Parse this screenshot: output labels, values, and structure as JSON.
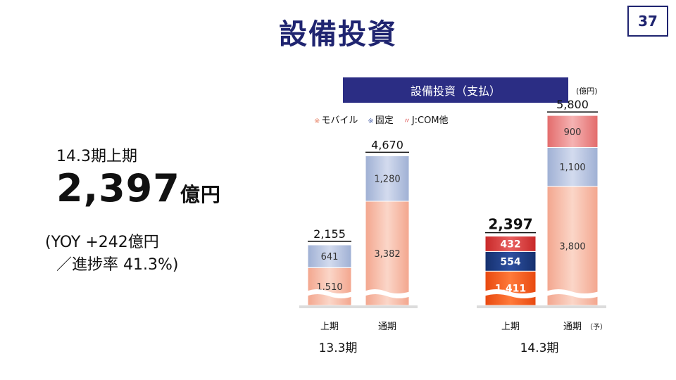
{
  "page": {
    "title": "設備投資",
    "page_number": "37"
  },
  "summary": {
    "period": "14.3期上期",
    "value": "2,397",
    "unit": "億円",
    "yoy_line": "(YOY +242億円",
    "progress_line": "／進捗率 41.3%)"
  },
  "chart_header": "設備投資（支払）",
  "unit_label": "(億円)",
  "legend": [
    {
      "label": "モバイル",
      "marker": "※",
      "color": "#f0a890"
    },
    {
      "label": "固定",
      "marker": "※",
      "color": "#8a9cc4"
    },
    {
      "label": "J:COM他",
      "marker": "〃",
      "color": "#d83a3a"
    }
  ],
  "chart_data": {
    "type": "bar",
    "stacked": true,
    "groups": [
      {
        "label": "13.3期",
        "bars": [
          {
            "category": "上期",
            "total_label": "2,155",
            "segments": [
              {
                "series": "モバイル",
                "value": 1510,
                "label": "1,510"
              },
              {
                "series": "固定",
                "value": 641,
                "label": "641"
              }
            ]
          },
          {
            "category": "通期",
            "total_label": "4,670",
            "segments": [
              {
                "series": "モバイル",
                "value": 3382,
                "label": "3,382"
              },
              {
                "series": "固定",
                "value": 1280,
                "label": "1,280"
              }
            ]
          }
        ]
      },
      {
        "label": "14.3期",
        "bars": [
          {
            "category": "上期",
            "total_label": "2,397",
            "highlight": true,
            "segments": [
              {
                "series": "モバイル",
                "value": 1411,
                "label": "1,411"
              },
              {
                "series": "固定",
                "value": 554,
                "label": "554"
              },
              {
                "series": "J:COM他",
                "value": 432,
                "label": "432"
              }
            ]
          },
          {
            "category": "通期",
            "suffix": "（予）",
            "total_label": "5,800",
            "segments": [
              {
                "series": "モバイル",
                "value": 3800,
                "label": "3,800"
              },
              {
                "series": "固定",
                "value": 1100,
                "label": "1,100"
              },
              {
                "series": "J:COM他",
                "value": 900,
                "label": "900"
              }
            ]
          }
        ]
      }
    ],
    "axis_break": true
  }
}
